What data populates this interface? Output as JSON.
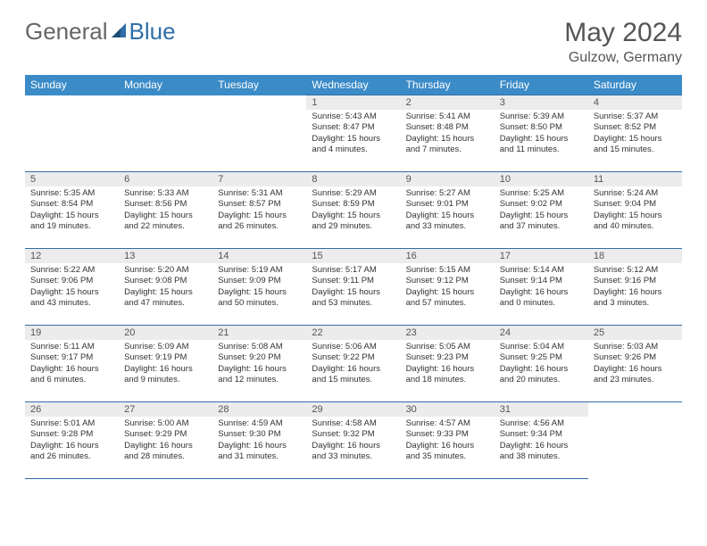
{
  "brand": {
    "part1": "General",
    "part2": "Blue"
  },
  "title": "May 2024",
  "subtitle": "Gulzow, Germany",
  "colors": {
    "header_bg": "#3b8bc7",
    "header_text": "#ffffff",
    "border": "#2f6ea8",
    "daynum_bg": "#ececec",
    "text": "#333333"
  },
  "weekdays": [
    "Sunday",
    "Monday",
    "Tuesday",
    "Wednesday",
    "Thursday",
    "Friday",
    "Saturday"
  ],
  "weeks": [
    [
      null,
      null,
      null,
      {
        "n": "1",
        "sr": "Sunrise: 5:43 AM",
        "ss": "Sunset: 8:47 PM",
        "dl": "Daylight: 15 hours and 4 minutes."
      },
      {
        "n": "2",
        "sr": "Sunrise: 5:41 AM",
        "ss": "Sunset: 8:48 PM",
        "dl": "Daylight: 15 hours and 7 minutes."
      },
      {
        "n": "3",
        "sr": "Sunrise: 5:39 AM",
        "ss": "Sunset: 8:50 PM",
        "dl": "Daylight: 15 hours and 11 minutes."
      },
      {
        "n": "4",
        "sr": "Sunrise: 5:37 AM",
        "ss": "Sunset: 8:52 PM",
        "dl": "Daylight: 15 hours and 15 minutes."
      }
    ],
    [
      {
        "n": "5",
        "sr": "Sunrise: 5:35 AM",
        "ss": "Sunset: 8:54 PM",
        "dl": "Daylight: 15 hours and 19 minutes."
      },
      {
        "n": "6",
        "sr": "Sunrise: 5:33 AM",
        "ss": "Sunset: 8:56 PM",
        "dl": "Daylight: 15 hours and 22 minutes."
      },
      {
        "n": "7",
        "sr": "Sunrise: 5:31 AM",
        "ss": "Sunset: 8:57 PM",
        "dl": "Daylight: 15 hours and 26 minutes."
      },
      {
        "n": "8",
        "sr": "Sunrise: 5:29 AM",
        "ss": "Sunset: 8:59 PM",
        "dl": "Daylight: 15 hours and 29 minutes."
      },
      {
        "n": "9",
        "sr": "Sunrise: 5:27 AM",
        "ss": "Sunset: 9:01 PM",
        "dl": "Daylight: 15 hours and 33 minutes."
      },
      {
        "n": "10",
        "sr": "Sunrise: 5:25 AM",
        "ss": "Sunset: 9:02 PM",
        "dl": "Daylight: 15 hours and 37 minutes."
      },
      {
        "n": "11",
        "sr": "Sunrise: 5:24 AM",
        "ss": "Sunset: 9:04 PM",
        "dl": "Daylight: 15 hours and 40 minutes."
      }
    ],
    [
      {
        "n": "12",
        "sr": "Sunrise: 5:22 AM",
        "ss": "Sunset: 9:06 PM",
        "dl": "Daylight: 15 hours and 43 minutes."
      },
      {
        "n": "13",
        "sr": "Sunrise: 5:20 AM",
        "ss": "Sunset: 9:08 PM",
        "dl": "Daylight: 15 hours and 47 minutes."
      },
      {
        "n": "14",
        "sr": "Sunrise: 5:19 AM",
        "ss": "Sunset: 9:09 PM",
        "dl": "Daylight: 15 hours and 50 minutes."
      },
      {
        "n": "15",
        "sr": "Sunrise: 5:17 AM",
        "ss": "Sunset: 9:11 PM",
        "dl": "Daylight: 15 hours and 53 minutes."
      },
      {
        "n": "16",
        "sr": "Sunrise: 5:15 AM",
        "ss": "Sunset: 9:12 PM",
        "dl": "Daylight: 15 hours and 57 minutes."
      },
      {
        "n": "17",
        "sr": "Sunrise: 5:14 AM",
        "ss": "Sunset: 9:14 PM",
        "dl": "Daylight: 16 hours and 0 minutes."
      },
      {
        "n": "18",
        "sr": "Sunrise: 5:12 AM",
        "ss": "Sunset: 9:16 PM",
        "dl": "Daylight: 16 hours and 3 minutes."
      }
    ],
    [
      {
        "n": "19",
        "sr": "Sunrise: 5:11 AM",
        "ss": "Sunset: 9:17 PM",
        "dl": "Daylight: 16 hours and 6 minutes."
      },
      {
        "n": "20",
        "sr": "Sunrise: 5:09 AM",
        "ss": "Sunset: 9:19 PM",
        "dl": "Daylight: 16 hours and 9 minutes."
      },
      {
        "n": "21",
        "sr": "Sunrise: 5:08 AM",
        "ss": "Sunset: 9:20 PM",
        "dl": "Daylight: 16 hours and 12 minutes."
      },
      {
        "n": "22",
        "sr": "Sunrise: 5:06 AM",
        "ss": "Sunset: 9:22 PM",
        "dl": "Daylight: 16 hours and 15 minutes."
      },
      {
        "n": "23",
        "sr": "Sunrise: 5:05 AM",
        "ss": "Sunset: 9:23 PM",
        "dl": "Daylight: 16 hours and 18 minutes."
      },
      {
        "n": "24",
        "sr": "Sunrise: 5:04 AM",
        "ss": "Sunset: 9:25 PM",
        "dl": "Daylight: 16 hours and 20 minutes."
      },
      {
        "n": "25",
        "sr": "Sunrise: 5:03 AM",
        "ss": "Sunset: 9:26 PM",
        "dl": "Daylight: 16 hours and 23 minutes."
      }
    ],
    [
      {
        "n": "26",
        "sr": "Sunrise: 5:01 AM",
        "ss": "Sunset: 9:28 PM",
        "dl": "Daylight: 16 hours and 26 minutes."
      },
      {
        "n": "27",
        "sr": "Sunrise: 5:00 AM",
        "ss": "Sunset: 9:29 PM",
        "dl": "Daylight: 16 hours and 28 minutes."
      },
      {
        "n": "28",
        "sr": "Sunrise: 4:59 AM",
        "ss": "Sunset: 9:30 PM",
        "dl": "Daylight: 16 hours and 31 minutes."
      },
      {
        "n": "29",
        "sr": "Sunrise: 4:58 AM",
        "ss": "Sunset: 9:32 PM",
        "dl": "Daylight: 16 hours and 33 minutes."
      },
      {
        "n": "30",
        "sr": "Sunrise: 4:57 AM",
        "ss": "Sunset: 9:33 PM",
        "dl": "Daylight: 16 hours and 35 minutes."
      },
      {
        "n": "31",
        "sr": "Sunrise: 4:56 AM",
        "ss": "Sunset: 9:34 PM",
        "dl": "Daylight: 16 hours and 38 minutes."
      },
      null
    ]
  ]
}
